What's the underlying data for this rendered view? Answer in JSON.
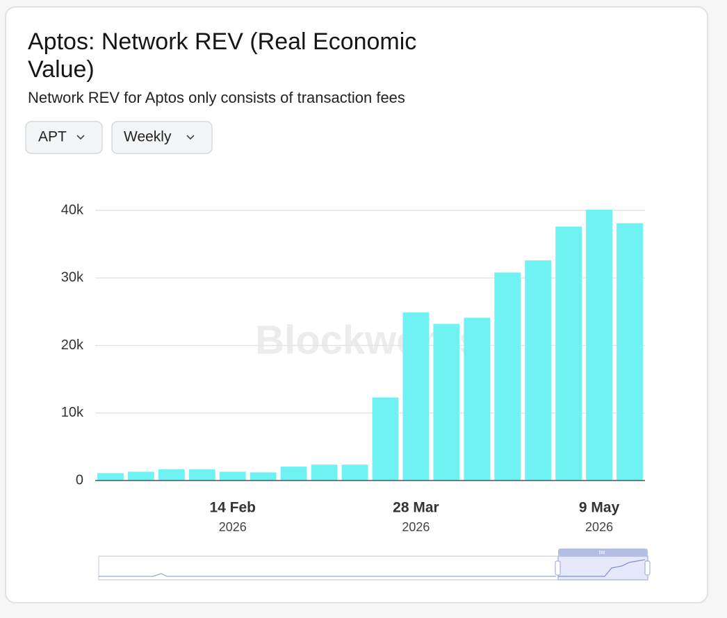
{
  "chart_data": {
    "type": "bar",
    "title_lines": [
      "Aptos: Network REV (Real Economic",
      "Value)"
    ],
    "subtitle": "Network REV for Aptos only consists of transaction fees",
    "controls": [
      "APT",
      "Weekly"
    ],
    "watermark": "Blockworks",
    "categories": [
      null,
      null,
      null,
      null,
      "14 Feb",
      null,
      null,
      null,
      null,
      null,
      "28 Mar",
      null,
      null,
      null,
      null,
      null,
      "9 May",
      null
    ],
    "category_sublabels": [
      null,
      null,
      null,
      null,
      "2026",
      null,
      null,
      null,
      null,
      null,
      "2026",
      null,
      null,
      null,
      null,
      null,
      "2026",
      null
    ],
    "values": [
      1100,
      1300,
      1650,
      1650,
      1300,
      1200,
      2050,
      2350,
      2350,
      12300,
      24900,
      23200,
      24100,
      30800,
      32600,
      37600,
      40100,
      38100
    ],
    "color": "#70f2f2",
    "ylim": [
      0,
      40000
    ],
    "yticks": [
      0,
      {
        "value": 10000,
        "label": "10k"
      },
      {
        "value": 20000,
        "label": "20k"
      },
      {
        "value": 30000,
        "label": "30k"
      },
      {
        "value": 40000,
        "label": "40k"
      }
    ],
    "grid": true
  }
}
